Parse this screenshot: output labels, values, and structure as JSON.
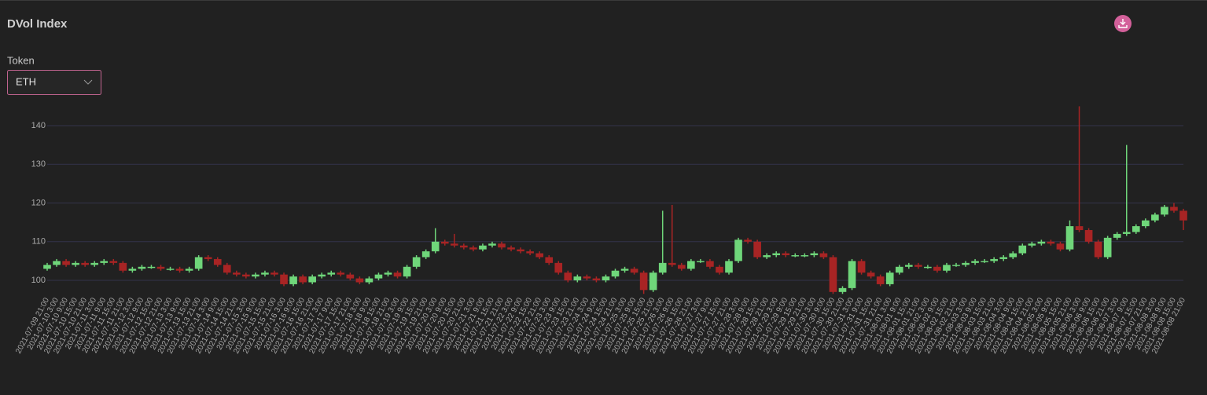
{
  "header": {
    "title": "DVol Index",
    "token_label": "Token",
    "token_value": "ETH"
  },
  "chart_data": {
    "type": "candlestick",
    "categories": [
      "2021-07-09 21:00",
      "2021-07-10 3:00",
      "2021-07-10 9:00",
      "2021-07-10 15:00",
      "2021-07-10 21:00",
      "2021-07-11 3:00",
      "2021-07-11 9:00",
      "2021-07-11 15:00",
      "2021-07-11 21:00",
      "2021-07-12 3:00",
      "2021-07-12 9:00",
      "2021-07-12 15:00",
      "2021-07-12 21:00",
      "2021-07-13 3:00",
      "2021-07-13 9:00",
      "2021-07-13 15:00",
      "2021-07-13 21:00",
      "2021-07-14 3:00",
      "2021-07-14 9:00",
      "2021-07-14 15:00",
      "2021-07-14 21:00",
      "2021-07-15 3:00",
      "2021-07-15 9:00",
      "2021-07-15 15:00",
      "2021-07-15 21:00",
      "2021-07-16 3:00",
      "2021-07-16 9:00",
      "2021-07-16 15:00",
      "2021-07-16 21:00",
      "2021-07-17 3:00",
      "2021-07-17 9:00",
      "2021-07-17 15:00",
      "2021-07-17 21:00",
      "2021-07-18 3:00",
      "2021-07-18 9:00",
      "2021-07-18 15:00",
      "2021-07-18 21:00",
      "2021-07-19 3:00",
      "2021-07-19 9:00",
      "2021-07-19 15:00",
      "2021-07-19 21:00",
      "2021-07-20 3:00",
      "2021-07-20 9:00",
      "2021-07-20 15:00",
      "2021-07-20 21:00",
      "2021-07-21 3:00",
      "2021-07-21 9:00",
      "2021-07-21 15:00",
      "2021-07-21 21:00",
      "2021-07-22 3:00",
      "2021-07-22 9:00",
      "2021-07-22 15:00",
      "2021-07-22 21:00",
      "2021-07-23 3:00",
      "2021-07-23 9:00",
      "2021-07-23 15:00",
      "2021-07-23 21:00",
      "2021-07-24 3:00",
      "2021-07-24 9:00",
      "2021-07-24 15:00",
      "2021-07-24 21:00",
      "2021-07-25 3:00",
      "2021-07-25 9:00",
      "2021-07-25 15:00",
      "2021-07-25 21:00",
      "2021-07-26 3:00",
      "2021-07-26 9:00",
      "2021-07-26 15:00",
      "2021-07-26 21:00",
      "2021-07-27 3:00",
      "2021-07-27 9:00",
      "2021-07-27 15:00",
      "2021-07-27 21:00",
      "2021-07-28 3:00",
      "2021-07-28 9:00",
      "2021-07-28 15:00",
      "2021-07-28 21:00",
      "2021-07-29 3:00",
      "2021-07-29 9:00",
      "2021-07-29 15:00",
      "2021-07-29 21:00",
      "2021-07-30 3:00",
      "2021-07-30 9:00",
      "2021-07-30 15:00",
      "2021-07-30 21:00",
      "2021-07-31 3:00",
      "2021-07-31 9:00",
      "2021-07-31 15:00",
      "2021-07-31 21:00",
      "2021-08-01 3:00",
      "2021-08-01 9:00",
      "2021-08-01 15:00",
      "2021-08-01 21:00",
      "2021-08-02 3:00",
      "2021-08-02 9:00",
      "2021-08-02 15:00",
      "2021-08-02 21:00",
      "2021-08-03 3:00",
      "2021-08-03 9:00",
      "2021-08-03 15:00",
      "2021-08-03 21:00",
      "2021-08-04 3:00",
      "2021-08-04 9:00",
      "2021-08-04 15:00",
      "2021-08-04 21:00",
      "2021-08-05 3:00",
      "2021-08-05 9:00",
      "2021-08-05 15:00",
      "2021-08-05 21:00",
      "2021-08-06 3:00",
      "2021-08-06 9:00",
      "2021-08-06 15:00",
      "2021-08-06 21:00",
      "2021-08-07 3:00",
      "2021-08-07 9:00",
      "2021-08-07 15:00",
      "2021-08-07 21:00",
      "2021-08-08 3:00",
      "2021-08-08 9:00",
      "2021-08-08 15:00",
      "2021-08-08 21:00"
    ],
    "open": [
      103,
      104,
      105,
      104,
      104.5,
      104,
      104.5,
      105,
      104.5,
      102.5,
      103,
      103.5,
      103.5,
      103,
      103,
      102.5,
      103,
      106,
      105.5,
      104,
      102,
      101.5,
      101,
      101.5,
      102,
      101.5,
      99,
      101,
      99.5,
      101,
      101.5,
      102,
      101.5,
      100.5,
      99.5,
      100.5,
      101.5,
      102,
      101,
      103.5,
      106,
      107.5,
      110,
      109.5,
      109,
      108.5,
      108,
      109,
      109.5,
      108.5,
      108,
      107.5,
      107,
      106,
      104.5,
      102,
      100,
      101,
      100.5,
      100,
      101,
      102.5,
      103,
      102,
      97.5,
      102,
      104.5,
      104,
      103,
      105,
      105,
      103.5,
      102,
      105,
      110.5,
      110,
      106,
      106.5,
      107,
      106.5,
      106.5,
      106.5,
      107,
      106,
      97,
      98,
      105,
      102,
      101,
      99,
      102,
      103.5,
      104,
      103.5,
      103.5,
      102.5,
      104,
      104,
      104.5,
      105,
      105,
      105.5,
      106,
      107,
      109,
      109.5,
      110,
      109.5,
      108,
      114,
      113,
      110,
      106,
      111,
      112,
      112.5,
      114,
      115.5,
      117,
      119,
      118
    ],
    "high": [
      104.5,
      105.5,
      105.5,
      105,
      105,
      105,
      105.5,
      105.5,
      105,
      103.5,
      104,
      104,
      104,
      103.5,
      103.5,
      103.5,
      106.5,
      106.5,
      106,
      104.5,
      102.5,
      102,
      102,
      102.5,
      102.5,
      102,
      101.5,
      101.5,
      101.5,
      102,
      102.5,
      102.5,
      102,
      101,
      101,
      102,
      102.5,
      102.5,
      104,
      106.5,
      108,
      113.5,
      110.5,
      112,
      109.5,
      109,
      109.5,
      110,
      110,
      109,
      108.5,
      108,
      107.5,
      106.5,
      105,
      102.5,
      101.5,
      101.5,
      101,
      101.5,
      103,
      103.5,
      103.5,
      102.5,
      102.5,
      118,
      119.5,
      104.5,
      105.5,
      105.5,
      105.5,
      104,
      105.5,
      111,
      111,
      110.5,
      107,
      107.5,
      107.5,
      107,
      107,
      107.5,
      107.5,
      106.5,
      98.5,
      105.5,
      105.5,
      102.5,
      101.5,
      102.5,
      104,
      104.5,
      104.5,
      104,
      104,
      104.5,
      104.5,
      105,
      105.5,
      105.5,
      106,
      106.5,
      107.5,
      109.5,
      110,
      110.5,
      110.5,
      110,
      115.5,
      145,
      113.5,
      110.5,
      111.5,
      112.5,
      135,
      114.5,
      116,
      117.5,
      119.5,
      120,
      118.5
    ],
    "low": [
      102.5,
      103.5,
      103.5,
      103.5,
      103.5,
      103.5,
      104,
      104,
      102,
      102,
      102.5,
      103,
      102.5,
      102.5,
      102,
      102,
      102.5,
      105,
      103.5,
      101.5,
      101,
      100.5,
      100.5,
      101,
      101,
      98.5,
      98.5,
      99,
      99,
      100.5,
      101,
      101,
      100,
      99,
      99,
      100,
      101,
      100.5,
      100.5,
      103,
      105.5,
      107,
      109,
      108.5,
      108,
      107.5,
      107.5,
      108.5,
      108,
      107.5,
      107,
      106.5,
      105.5,
      104,
      101.5,
      99.5,
      99.5,
      100,
      99.5,
      99.5,
      100.5,
      102,
      101.5,
      96.5,
      97,
      101.5,
      103.5,
      102.5,
      102.5,
      104.5,
      103,
      101.5,
      101.5,
      104.5,
      109.5,
      105.5,
      105.5,
      106,
      106,
      106,
      106,
      106,
      105.5,
      96.5,
      96.5,
      97.5,
      101.5,
      100.5,
      98.5,
      98.5,
      101.5,
      103,
      103,
      103,
      102,
      102,
      103.5,
      103.5,
      104,
      104.5,
      104.5,
      105,
      105.5,
      106.5,
      108.5,
      109,
      109,
      107.5,
      107.5,
      112.5,
      109.5,
      105.5,
      105.5,
      110.5,
      111.5,
      112,
      113.5,
      115,
      116.5,
      117.5,
      113
    ],
    "close": [
      104,
      105,
      104,
      104.5,
      104,
      104.5,
      105,
      104.5,
      102.5,
      103,
      103.5,
      103.5,
      103,
      103,
      102.5,
      103,
      106,
      105.5,
      104,
      102,
      101.5,
      101,
      101.5,
      102,
      101.5,
      99,
      101,
      99.5,
      101,
      101.5,
      102,
      101.5,
      100.5,
      99.5,
      100.5,
      101.5,
      102,
      101,
      103.5,
      106,
      107.5,
      110,
      109.5,
      109,
      108.5,
      108,
      109,
      109.5,
      108.5,
      108,
      107.5,
      107,
      106,
      104.5,
      102,
      100,
      101,
      100.5,
      100,
      101,
      102.5,
      103,
      102,
      97.5,
      102,
      104.5,
      104,
      103,
      105,
      105,
      103.5,
      102,
      105,
      110.5,
      110,
      106,
      106.5,
      107,
      106.5,
      106.5,
      106.5,
      107,
      106,
      97,
      98,
      105,
      102,
      101,
      99,
      102,
      103.5,
      104,
      103.5,
      103.5,
      102.5,
      104,
      104,
      104.5,
      105,
      105,
      105.5,
      106,
      107,
      109,
      109.5,
      110,
      109.5,
      108,
      114,
      113,
      110,
      106,
      111,
      112,
      112.5,
      114,
      115.5,
      117,
      119,
      118,
      115.5
    ],
    "up_color": "#6fd67a",
    "down_color": "#a82424",
    "ylim": [
      97,
      147
    ],
    "yticks": [
      100,
      110,
      120,
      130,
      140
    ],
    "grid": true
  }
}
